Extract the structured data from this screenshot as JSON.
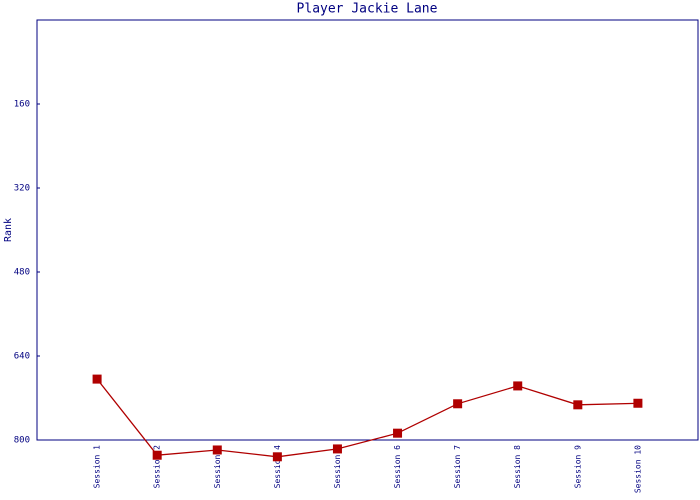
{
  "chart_data": {
    "type": "line",
    "title": "Player Jackie Lane",
    "y_label": "Rank",
    "categories": [
      "Session 1",
      "Session 2",
      "Session 3",
      "Session 4",
      "Session 5",
      "Session 6",
      "Session 7",
      "Session 8",
      "Session 9",
      "Session 10"
    ],
    "series": [
      {
        "name": "Rank",
        "color": "#b00000",
        "values": [
          684,
          829,
          819,
          832,
          817,
          787,
          731,
          697,
          733,
          730
        ]
      }
    ],
    "ylim": [
      800,
      0
    ],
    "yticks": [
      160,
      320,
      480,
      640,
      800
    ],
    "grid": false
  }
}
